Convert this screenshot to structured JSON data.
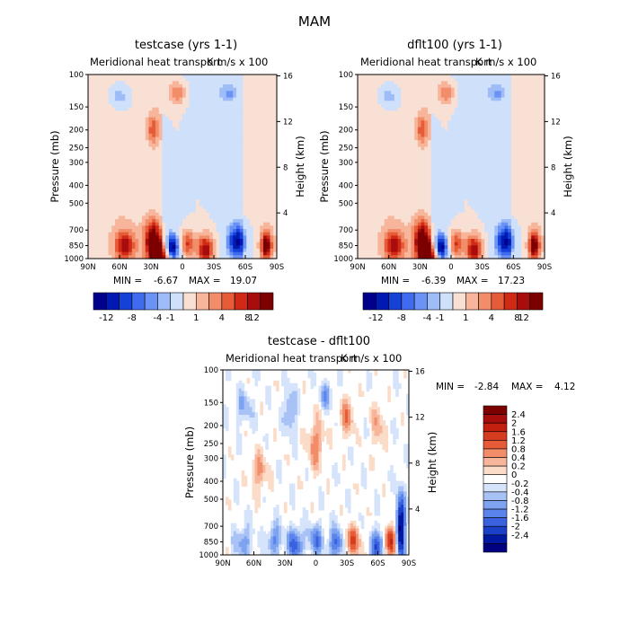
{
  "chart_data": {
    "type": "heatmap",
    "title": "MAM",
    "pressure_levels": [
      100,
      150,
      200,
      250,
      300,
      400,
      500,
      700,
      850,
      1000
    ],
    "height_km_ticks": [
      16,
      12,
      8,
      4
    ],
    "lat_ticks": [
      "90N",
      "60N",
      "30N",
      "0",
      "30S",
      "60S",
      "90S"
    ],
    "ylabel_left": "Pressure (mb)",
    "ylabel_right": "Height (km)",
    "panels": [
      {
        "title": "testcase (yrs 1-1)",
        "subtitle_left": "Meridional heat transport",
        "subtitle_right": "K m/s x 100",
        "min_label": "MIN =",
        "min_value": "-6.67",
        "max_label": "MAX =",
        "max_value": "19.07",
        "colorbar_labels": [
          "-12",
          "-8",
          "-4",
          "-1",
          "1",
          "4",
          "8",
          "12"
        ],
        "features": [
          {
            "lat": 20,
            "p": 1.0,
            "v": 1.0,
            "w": 6,
            "h": 0.06
          },
          {
            "lat": 28,
            "p": 0.9,
            "v": 1.0,
            "w": 6,
            "h": 0.08
          },
          {
            "lat": 28,
            "p": 0.3,
            "v": 0.5,
            "w": 4,
            "h": 0.06
          },
          {
            "lat": 10,
            "p": 0.94,
            "v": -1.0,
            "w": 4.5,
            "h": 0.05
          },
          {
            "lat": -5,
            "p": 0.92,
            "v": 0.7,
            "w": 5,
            "h": 0.06
          },
          {
            "lat": -22,
            "p": 0.95,
            "v": 0.9,
            "w": 6,
            "h": 0.06
          },
          {
            "lat": -52,
            "p": 0.91,
            "v": -0.8,
            "w": 7,
            "h": 0.07
          },
          {
            "lat": -80,
            "p": 0.93,
            "v": 1.0,
            "w": 4,
            "h": 0.06
          },
          {
            "lat": 55,
            "p": 0.93,
            "v": 0.7,
            "w": 7,
            "h": 0.06
          },
          {
            "lat": 60,
            "p": 0.12,
            "v": -0.4,
            "w": 7,
            "h": 0.05
          },
          {
            "lat": -45,
            "p": 0.1,
            "v": -0.35,
            "w": 8,
            "h": 0.04
          },
          {
            "lat": 5,
            "p": 0.1,
            "v": 0.5,
            "w": 6,
            "h": 0.05
          }
        ]
      },
      {
        "title": "dflt100 (yrs 1-1)",
        "subtitle_left": "Meridional heat transport",
        "subtitle_right": "K m/s x 100",
        "min_label": "MIN =",
        "min_value": "-6.39",
        "max_label": "MAX =",
        "max_value": "17.23",
        "colorbar_labels": [
          "-12",
          "-8",
          "-4",
          "-1",
          "1",
          "4",
          "8",
          "12"
        ],
        "features": [
          {
            "lat": 20,
            "p": 1.0,
            "v": 1.0,
            "w": 6,
            "h": 0.06
          },
          {
            "lat": 28,
            "p": 0.9,
            "v": 1.0,
            "w": 6,
            "h": 0.08
          },
          {
            "lat": 28,
            "p": 0.3,
            "v": 0.5,
            "w": 4,
            "h": 0.06
          },
          {
            "lat": 10,
            "p": 0.94,
            "v": -1.0,
            "w": 4.5,
            "h": 0.05
          },
          {
            "lat": -5,
            "p": 0.92,
            "v": 0.7,
            "w": 5,
            "h": 0.06
          },
          {
            "lat": -22,
            "p": 0.95,
            "v": 0.9,
            "w": 6,
            "h": 0.06
          },
          {
            "lat": -52,
            "p": 0.91,
            "v": -0.8,
            "w": 7,
            "h": 0.07
          },
          {
            "lat": -80,
            "p": 0.93,
            "v": 1.0,
            "w": 4,
            "h": 0.06
          },
          {
            "lat": 55,
            "p": 0.93,
            "v": 0.7,
            "w": 7,
            "h": 0.06
          },
          {
            "lat": 60,
            "p": 0.12,
            "v": -0.4,
            "w": 7,
            "h": 0.05
          },
          {
            "lat": -45,
            "p": 0.1,
            "v": -0.35,
            "w": 8,
            "h": 0.04
          },
          {
            "lat": 5,
            "p": 0.1,
            "v": 0.5,
            "w": 6,
            "h": 0.05
          }
        ]
      },
      {
        "title": "testcase - dflt100",
        "subtitle_left": "Meridional heat transport",
        "subtitle_right": "K m/s x 100",
        "min_label": "MIN =",
        "min_value": "-2.84",
        "max_label": "MAX =",
        "max_value": "4.12",
        "colorbar_labels": [
          "2.4",
          "2",
          "1.6",
          "1.2",
          "0.8",
          "0.4",
          "0.2",
          "0",
          "-0.2",
          "-0.4",
          "-0.8",
          "-1.2",
          "-1.6",
          "-2",
          "-2.4"
        ],
        "features": [
          {
            "lat": -82,
            "p": 0.85,
            "v": 1.0,
            "w": 3,
            "h": 0.12
          },
          {
            "lat": -72,
            "p": 0.92,
            "v": -0.8,
            "w": 4,
            "h": 0.06
          },
          {
            "lat": -60,
            "p": 0.95,
            "v": 0.6,
            "w": 5,
            "h": 0.06
          },
          {
            "lat": -35,
            "p": 0.93,
            "v": -0.5,
            "w": 6,
            "h": 0.06
          },
          {
            "lat": -20,
            "p": 0.94,
            "v": 0.55,
            "w": 5,
            "h": 0.06
          },
          {
            "lat": 0,
            "p": 0.92,
            "v": 0.45,
            "w": 5,
            "h": 0.06
          },
          {
            "lat": 20,
            "p": 0.94,
            "v": 0.6,
            "w": 5,
            "h": 0.06
          },
          {
            "lat": 40,
            "p": 0.92,
            "v": 0.4,
            "w": 5,
            "h": 0.06
          },
          {
            "lat": 70,
            "p": 0.93,
            "v": 0.35,
            "w": 6,
            "h": 0.06
          },
          {
            "lat": 0,
            "p": 0.4,
            "v": -0.35,
            "w": 6,
            "h": 0.1
          },
          {
            "lat": -30,
            "p": 0.25,
            "v": -0.35,
            "w": 5,
            "h": 0.08
          },
          {
            "lat": 25,
            "p": 0.22,
            "v": 0.35,
            "w": 4,
            "h": 0.08
          },
          {
            "lat": 55,
            "p": 0.55,
            "v": -0.3,
            "w": 6,
            "h": 0.08
          },
          {
            "lat": -10,
            "p": 0.14,
            "v": 0.35,
            "w": 4,
            "h": 0.05
          },
          {
            "lat": -60,
            "p": 0.3,
            "v": -0.25,
            "w": 5,
            "h": 0.1
          },
          {
            "lat": 70,
            "p": 0.2,
            "v": 0.25,
            "w": 6,
            "h": 0.06
          }
        ]
      }
    ]
  },
  "colors": {
    "scale12": [
      "#00008c",
      "#0019b3",
      "#1541d6",
      "#3f6bef",
      "#6b93f5",
      "#9ebcf8",
      "#cfe0fb",
      "#f9e0d5",
      "#f7b59b",
      "#f28d6a",
      "#e65b38",
      "#d02a17",
      "#a80d0d",
      "#7d0000"
    ],
    "scale_diff": [
      "#7d0000",
      "#a80d0d",
      "#c3200f",
      "#d63c1f",
      "#e65b38",
      "#f28d6a",
      "#f7b59b",
      "#fbdcc8",
      "#ffffff",
      "#d6e4fb",
      "#a8c2f6",
      "#7ea3f1",
      "#5a83eb",
      "#3a62de",
      "#1c3fc8",
      "#0019a0",
      "#000080"
    ]
  }
}
